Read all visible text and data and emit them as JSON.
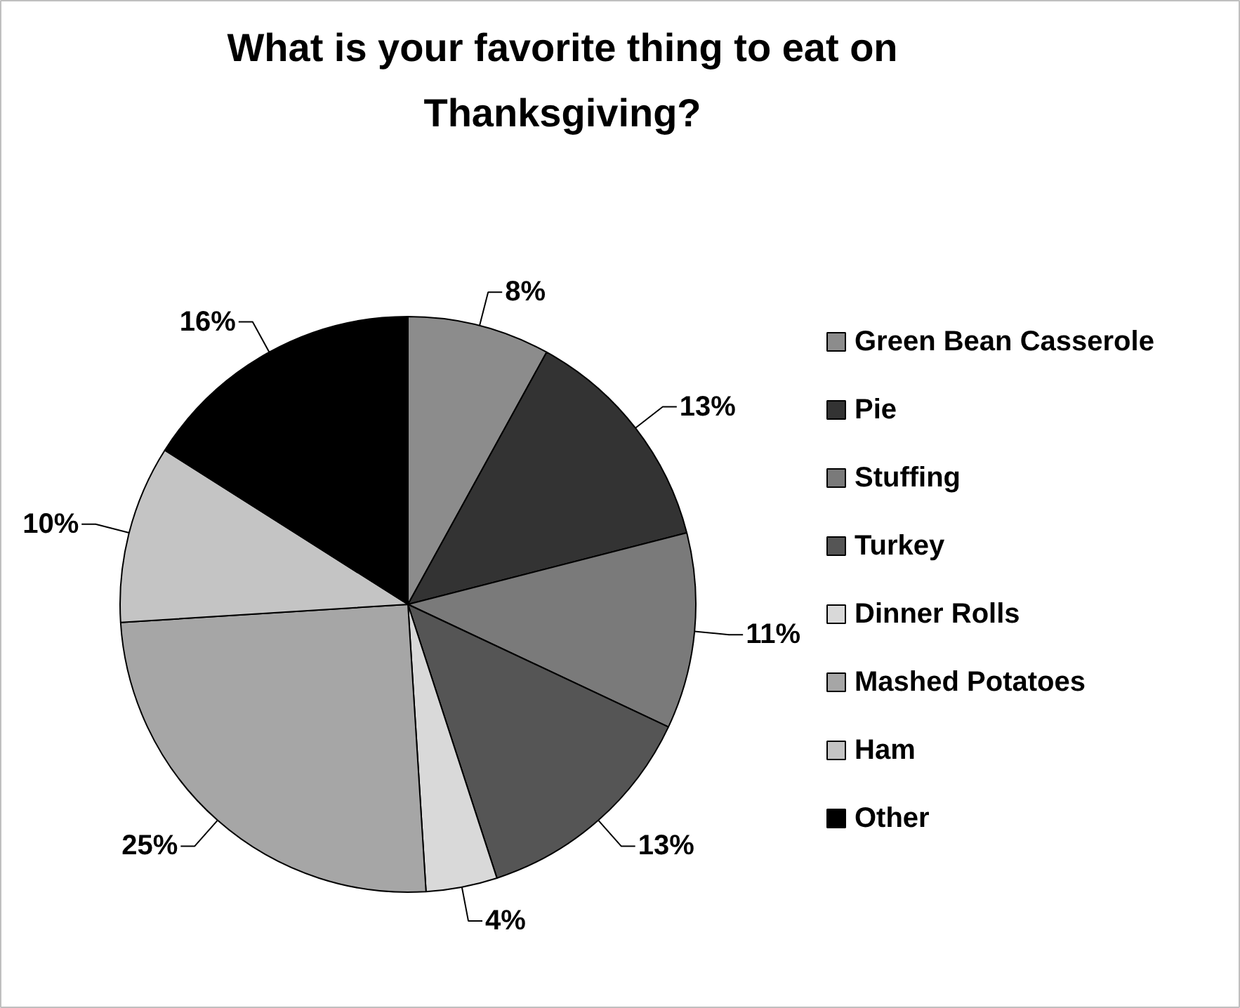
{
  "chart_data": {
    "type": "pie",
    "title": "What is your favorite thing to eat on\nThanksgiving?",
    "categories": [
      "Green Bean Casserole",
      "Pie",
      "Stuffing",
      "Turkey",
      "Dinner Rolls",
      "Mashed Potatoes",
      "Ham",
      "Other"
    ],
    "values": [
      8,
      13,
      11,
      13,
      4,
      25,
      10,
      16
    ],
    "colors": [
      "#8c8c8c",
      "#333333",
      "#7a7a7a",
      "#555555",
      "#d9d9d9",
      "#a6a6a6",
      "#c4c4c4",
      "#000000"
    ],
    "value_labels": [
      "8%",
      "13%",
      "11%",
      "13%",
      "4%",
      "25%",
      "10%",
      "16%"
    ],
    "legend": "right"
  }
}
